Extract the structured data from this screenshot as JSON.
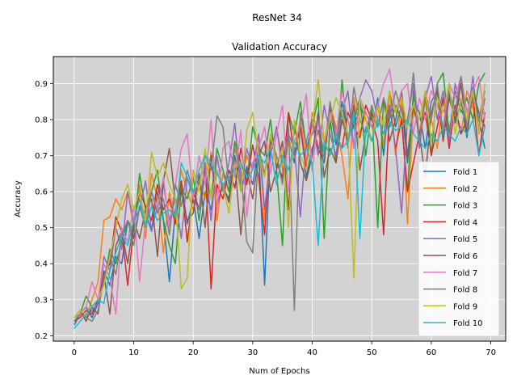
{
  "chart_data": {
    "type": "line",
    "suptitle": "ResNet 34",
    "title": "Validation Accuracy",
    "xlabel": "Num of Epochs",
    "ylabel": "Accuracy",
    "xlim": [
      -3.5,
      72.5
    ],
    "ylim": [
      0.185,
      0.975
    ],
    "xticks": [
      0,
      10,
      20,
      30,
      40,
      50,
      60,
      70
    ],
    "yticks": [
      0.2,
      0.3,
      0.4,
      0.5,
      0.6,
      0.7,
      0.8,
      0.9
    ],
    "grid": true,
    "plot_background": "#d3d3d3",
    "legend_position": "lower-right",
    "x": [
      0,
      1,
      2,
      3,
      4,
      5,
      6,
      7,
      8,
      9,
      10,
      11,
      12,
      13,
      14,
      15,
      16,
      17,
      18,
      19,
      20,
      21,
      22,
      23,
      24,
      25,
      26,
      27,
      28,
      29,
      30,
      31,
      32,
      33,
      34,
      35,
      36,
      37,
      38,
      39,
      40,
      41,
      42,
      43,
      44,
      45,
      46,
      47,
      48,
      49,
      50,
      51,
      52,
      53,
      54,
      55,
      56,
      57,
      58,
      59,
      60,
      61,
      62,
      63,
      64,
      65,
      66,
      67,
      68,
      69
    ],
    "series": [
      {
        "name": "Fold 1",
        "color": "#1f77b4",
        "values": [
          0.23,
          0.26,
          0.28,
          0.25,
          0.29,
          0.38,
          0.34,
          0.42,
          0.4,
          0.52,
          0.47,
          0.56,
          0.54,
          0.49,
          0.6,
          0.52,
          0.35,
          0.55,
          0.63,
          0.51,
          0.58,
          0.47,
          0.6,
          0.55,
          0.66,
          0.61,
          0.58,
          0.7,
          0.6,
          0.67,
          0.62,
          0.72,
          0.34,
          0.74,
          0.7,
          0.63,
          0.75,
          0.68,
          0.8,
          0.64,
          0.72,
          0.77,
          0.7,
          0.83,
          0.73,
          0.85,
          0.75,
          0.78,
          0.84,
          0.8,
          0.74,
          0.86,
          0.7,
          0.88,
          0.78,
          0.84,
          0.68,
          0.86,
          0.82,
          0.72,
          0.85,
          0.88,
          0.74,
          0.87,
          0.79,
          0.85,
          0.75,
          0.89,
          0.8,
          0.72
        ]
      },
      {
        "name": "Fold 2",
        "color": "#ff7f0e",
        "values": [
          0.25,
          0.27,
          0.25,
          0.3,
          0.35,
          0.52,
          0.53,
          0.58,
          0.55,
          0.6,
          0.5,
          0.62,
          0.47,
          0.65,
          0.58,
          0.43,
          0.6,
          0.52,
          0.66,
          0.6,
          0.55,
          0.63,
          0.58,
          0.71,
          0.52,
          0.65,
          0.6,
          0.74,
          0.62,
          0.7,
          0.66,
          0.76,
          0.52,
          0.7,
          0.78,
          0.66,
          0.74,
          0.7,
          0.8,
          0.68,
          0.82,
          0.76,
          0.72,
          0.84,
          0.78,
          0.7,
          0.58,
          0.86,
          0.76,
          0.82,
          0.78,
          0.84,
          0.73,
          0.88,
          0.7,
          0.86,
          0.51,
          0.83,
          0.76,
          0.88,
          0.8,
          0.72,
          0.86,
          0.78,
          0.82,
          0.76,
          0.88,
          0.83,
          0.78,
          0.86
        ]
      },
      {
        "name": "Fold 3",
        "color": "#2ca02c",
        "values": [
          0.24,
          0.26,
          0.31,
          0.28,
          0.3,
          0.35,
          0.44,
          0.4,
          0.46,
          0.52,
          0.49,
          0.65,
          0.55,
          0.6,
          0.66,
          0.52,
          0.45,
          0.4,
          0.61,
          0.58,
          0.64,
          0.52,
          0.66,
          0.58,
          0.72,
          0.66,
          0.6,
          0.74,
          0.68,
          0.62,
          0.78,
          0.72,
          0.7,
          0.8,
          0.66,
          0.45,
          0.82,
          0.76,
          0.85,
          0.72,
          0.78,
          0.86,
          0.47,
          0.8,
          0.68,
          0.91,
          0.74,
          0.8,
          0.86,
          0.7,
          0.83,
          0.5,
          0.86,
          0.78,
          0.84,
          0.8,
          0.6,
          0.88,
          0.74,
          0.86,
          0.7,
          0.9,
          0.93,
          0.76,
          0.88,
          0.82,
          0.86,
          0.8,
          0.9,
          0.93
        ]
      },
      {
        "name": "Fold 4",
        "color": "#d62728",
        "values": [
          0.24,
          0.25,
          0.27,
          0.26,
          0.3,
          0.37,
          0.4,
          0.53,
          0.49,
          0.34,
          0.5,
          0.6,
          0.56,
          0.52,
          0.62,
          0.55,
          0.58,
          0.51,
          0.63,
          0.46,
          0.6,
          0.55,
          0.68,
          0.33,
          0.62,
          0.58,
          0.66,
          0.61,
          0.72,
          0.62,
          0.73,
          0.64,
          0.48,
          0.76,
          0.68,
          0.64,
          0.82,
          0.7,
          0.78,
          0.66,
          0.8,
          0.72,
          0.68,
          0.84,
          0.76,
          0.72,
          0.82,
          0.78,
          0.75,
          0.84,
          0.8,
          0.74,
          0.48,
          0.84,
          0.72,
          0.8,
          0.6,
          0.68,
          0.76,
          0.82,
          0.7,
          0.78,
          0.86,
          0.72,
          0.84,
          0.76,
          0.8,
          0.86,
          0.7,
          0.82
        ]
      },
      {
        "name": "Fold 5",
        "color": "#9467bd",
        "values": [
          0.24,
          0.26,
          0.25,
          0.27,
          0.29,
          0.42,
          0.38,
          0.5,
          0.44,
          0.6,
          0.52,
          0.55,
          0.63,
          0.49,
          0.56,
          0.62,
          0.52,
          0.58,
          0.47,
          0.64,
          0.58,
          0.55,
          0.68,
          0.52,
          0.7,
          0.6,
          0.68,
          0.79,
          0.62,
          0.72,
          0.66,
          0.76,
          0.55,
          0.7,
          0.78,
          0.68,
          0.76,
          0.72,
          0.53,
          0.74,
          0.8,
          0.7,
          0.84,
          0.76,
          0.7,
          0.82,
          0.88,
          0.72,
          0.86,
          0.91,
          0.88,
          0.8,
          0.76,
          0.84,
          0.72,
          0.54,
          0.8,
          0.9,
          0.72,
          0.86,
          0.92,
          0.8,
          0.88,
          0.74,
          0.9,
          0.84,
          0.8,
          0.92,
          0.76,
          0.86
        ]
      },
      {
        "name": "Fold 6",
        "color": "#8c564b",
        "values": [
          0.25,
          0.27,
          0.24,
          0.28,
          0.26,
          0.37,
          0.26,
          0.45,
          0.49,
          0.4,
          0.52,
          0.47,
          0.55,
          0.58,
          0.42,
          0.63,
          0.72,
          0.57,
          0.6,
          0.52,
          0.54,
          0.65,
          0.5,
          0.7,
          0.56,
          0.62,
          0.57,
          0.68,
          0.48,
          0.66,
          0.58,
          0.7,
          0.74,
          0.6,
          0.66,
          0.74,
          0.55,
          0.79,
          0.68,
          0.63,
          0.7,
          0.82,
          0.64,
          0.72,
          0.68,
          0.8,
          0.74,
          0.84,
          0.66,
          0.76,
          0.82,
          0.78,
          0.86,
          0.74,
          0.8,
          0.88,
          0.7,
          0.84,
          0.76,
          0.64,
          0.82,
          0.88,
          0.74,
          0.86,
          0.8,
          0.9,
          0.76,
          0.88,
          0.82,
          0.78
        ]
      },
      {
        "name": "Fold 7",
        "color": "#e377c2",
        "values": [
          0.25,
          0.26,
          0.28,
          0.35,
          0.3,
          0.4,
          0.36,
          0.26,
          0.5,
          0.46,
          0.56,
          0.35,
          0.52,
          0.6,
          0.55,
          0.64,
          0.5,
          0.62,
          0.72,
          0.76,
          0.58,
          0.7,
          0.62,
          0.8,
          0.55,
          0.72,
          0.74,
          0.64,
          0.77,
          0.53,
          0.68,
          0.72,
          0.78,
          0.65,
          0.76,
          0.84,
          0.6,
          0.74,
          0.78,
          0.87,
          0.66,
          0.8,
          0.74,
          0.82,
          0.76,
          0.88,
          0.8,
          0.72,
          0.86,
          0.82,
          0.78,
          0.84,
          0.9,
          0.94,
          0.82,
          0.88,
          0.9,
          0.76,
          0.86,
          0.8,
          0.88,
          0.84,
          0.78,
          0.9,
          0.86,
          0.92,
          0.82,
          0.88,
          0.92,
          0.8
        ]
      },
      {
        "name": "Fold 8",
        "color": "#7f7f7f",
        "values": [
          0.24,
          0.26,
          0.25,
          0.24,
          0.27,
          0.36,
          0.42,
          0.37,
          0.48,
          0.52,
          0.45,
          0.56,
          0.5,
          0.6,
          0.54,
          0.58,
          0.48,
          0.62,
          0.56,
          0.66,
          0.6,
          0.62,
          0.7,
          0.66,
          0.81,
          0.78,
          0.62,
          0.72,
          0.66,
          0.46,
          0.43,
          0.72,
          0.65,
          0.75,
          0.7,
          0.62,
          0.78,
          0.27,
          0.82,
          0.72,
          0.76,
          0.8,
          0.7,
          0.85,
          0.74,
          0.82,
          0.72,
          0.89,
          0.8,
          0.76,
          0.84,
          0.78,
          0.86,
          0.8,
          0.88,
          0.82,
          0.78,
          0.93,
          0.74,
          0.86,
          0.8,
          0.9,
          0.76,
          0.88,
          0.82,
          0.92,
          0.78,
          0.86,
          0.8,
          0.88
        ]
      },
      {
        "name": "Fold 9",
        "color": "#bcbd22",
        "values": [
          0.25,
          0.27,
          0.26,
          0.28,
          0.3,
          0.34,
          0.42,
          0.5,
          0.58,
          0.62,
          0.55,
          0.6,
          0.52,
          0.71,
          0.64,
          0.68,
          0.62,
          0.58,
          0.33,
          0.36,
          0.66,
          0.6,
          0.72,
          0.58,
          0.66,
          0.62,
          0.54,
          0.68,
          0.6,
          0.77,
          0.82,
          0.7,
          0.64,
          0.76,
          0.68,
          0.72,
          0.5,
          0.8,
          0.7,
          0.66,
          0.78,
          0.91,
          0.74,
          0.8,
          0.86,
          0.82,
          0.76,
          0.36,
          0.86,
          0.8,
          0.74,
          0.84,
          0.78,
          0.88,
          0.82,
          0.86,
          0.78,
          0.84,
          0.8,
          0.88,
          0.74,
          0.86,
          0.82,
          0.9,
          0.76,
          0.86,
          0.8,
          0.88,
          0.76,
          0.9
        ]
      },
      {
        "name": "Fold 10",
        "color": "#17becf",
        "values": [
          0.22,
          0.24,
          0.26,
          0.28,
          0.3,
          0.29,
          0.38,
          0.43,
          0.48,
          0.45,
          0.52,
          0.58,
          0.5,
          0.56,
          0.52,
          0.54,
          0.55,
          0.53,
          0.68,
          0.64,
          0.6,
          0.66,
          0.7,
          0.68,
          0.65,
          0.62,
          0.64,
          0.66,
          0.68,
          0.64,
          0.66,
          0.7,
          0.68,
          0.72,
          0.62,
          0.7,
          0.66,
          0.74,
          0.7,
          0.72,
          0.68,
          0.45,
          0.74,
          0.7,
          0.76,
          0.72,
          0.74,
          0.82,
          0.47,
          0.78,
          0.74,
          0.8,
          0.76,
          0.79,
          0.77,
          0.78,
          0.8,
          0.76,
          0.74,
          0.72,
          0.76,
          0.74,
          0.78,
          0.76,
          0.74,
          0.78,
          0.76,
          0.8,
          0.7,
          0.78
        ]
      }
    ]
  }
}
